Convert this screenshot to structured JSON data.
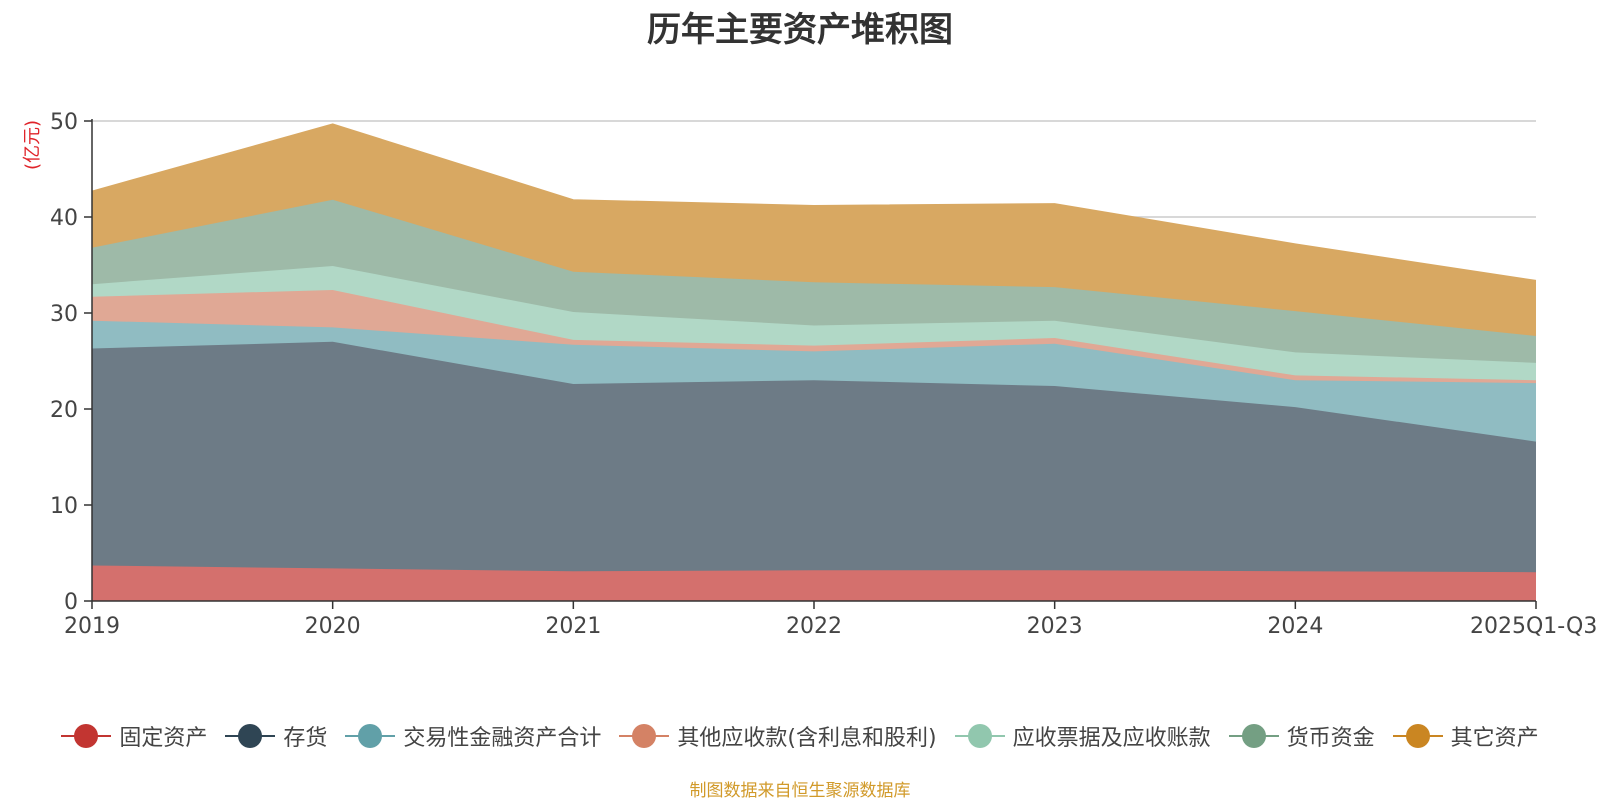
{
  "chart_data": {
    "type": "area",
    "stacked": true,
    "title": "历年主要资产堆积图",
    "ylabel": "(亿元)",
    "xlabel": "",
    "ylim": [
      0,
      50
    ],
    "yticks": [
      0,
      10,
      20,
      30,
      40,
      50
    ],
    "grid": true,
    "legend_position": "bottom",
    "categories": [
      "2019",
      "2020",
      "2021",
      "2022",
      "2023",
      "2024",
      "2025Q1-Q3"
    ],
    "series": [
      {
        "name": "固定资产",
        "color": "#c23531",
        "fill": "#d4706d",
        "values": [
          3.7,
          3.4,
          3.1,
          3.2,
          3.2,
          3.1,
          3.0
        ]
      },
      {
        "name": "存货",
        "color": "#2f4554",
        "fill": "#6d7b86",
        "values": [
          22.6,
          23.6,
          19.5,
          19.8,
          19.2,
          17.1,
          13.6
        ]
      },
      {
        "name": "交易性金融资产合计",
        "color": "#61a0a8",
        "fill": "#90bcc2",
        "values": [
          2.9,
          1.5,
          4.1,
          3.0,
          4.4,
          2.8,
          6.1
        ]
      },
      {
        "name": "其他应收款(含利息和股利)",
        "color": "#d48265",
        "fill": "#e0a895",
        "values": [
          2.5,
          3.9,
          0.5,
          0.6,
          0.6,
          0.5,
          0.3
        ]
      },
      {
        "name": "应收票据及应收账款",
        "color": "#91c7ae",
        "fill": "#b1d8c6",
        "values": [
          1.3,
          2.5,
          2.9,
          2.1,
          1.8,
          2.4,
          1.8
        ]
      },
      {
        "name": "货币资金",
        "color": "#749f83",
        "fill": "#9ebaa8",
        "values": [
          3.8,
          6.9,
          4.2,
          4.5,
          3.5,
          4.3,
          2.8
        ]
      },
      {
        "name": "其它资产",
        "color": "#ca8622",
        "fill": "#d8a862",
        "values": [
          5.9,
          7.9,
          7.5,
          8.0,
          8.7,
          7.0,
          5.8
        ]
      }
    ]
  },
  "footer": {
    "source": "制图数据来自恒生聚源数据库"
  }
}
